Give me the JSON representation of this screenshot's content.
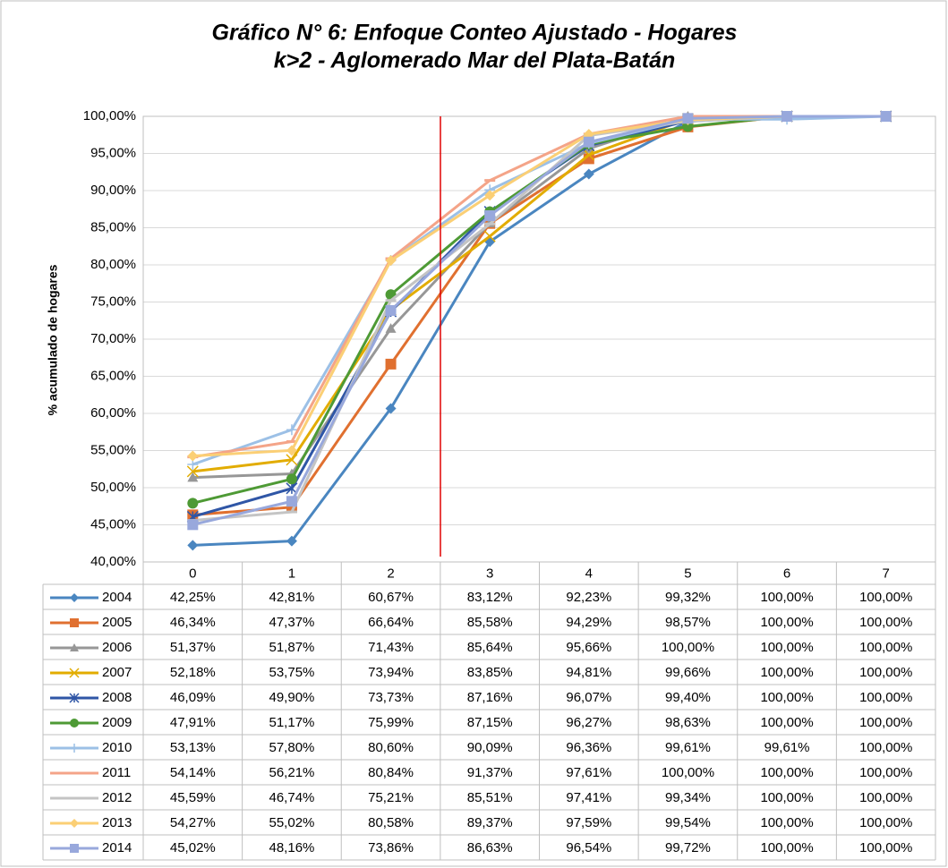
{
  "chart_data": {
    "type": "line",
    "title": "Gráfico N° 6: Enfoque Conteo Ajustado - Hogares",
    "subtitle": "k>2 - Aglomerado Mar del Plata-Batán",
    "y_label": "% acumulado de hogares",
    "categories": [
      "0",
      "1",
      "2",
      "3",
      "4",
      "5",
      "6",
      "7"
    ],
    "ylim": [
      40,
      100
    ],
    "yticks": [
      {
        "value": 40,
        "label": "40,00%"
      },
      {
        "value": 45,
        "label": "45,00%"
      },
      {
        "value": 50,
        "label": "50,00%"
      },
      {
        "value": 55,
        "label": "55,00%"
      },
      {
        "value": 60,
        "label": "60,00%"
      },
      {
        "value": 65,
        "label": "65,00%"
      },
      {
        "value": 70,
        "label": "70,00%"
      },
      {
        "value": 75,
        "label": "75,00%"
      },
      {
        "value": 80,
        "label": "80,00%"
      },
      {
        "value": 85,
        "label": "85,00%"
      },
      {
        "value": 90,
        "label": "90,00%"
      },
      {
        "value": 95,
        "label": "95,00%"
      },
      {
        "value": 100,
        "label": "100,00%"
      }
    ],
    "grid": true,
    "series": [
      {
        "name": "2004",
        "color": "#4a86c0",
        "marker": "diamond",
        "values": [
          42.25,
          42.81,
          60.67,
          83.12,
          92.23,
          99.32,
          100,
          100
        ],
        "value_labels": [
          "42,25%",
          "42,81%",
          "60,67%",
          "83,12%",
          "92,23%",
          "99,32%",
          "100,00%",
          "100,00%"
        ]
      },
      {
        "name": "2005",
        "color": "#e07030",
        "marker": "square",
        "values": [
          46.34,
          47.37,
          66.64,
          85.58,
          94.29,
          98.57,
          100,
          100
        ],
        "value_labels": [
          "46,34%",
          "47,37%",
          "66,64%",
          "85,58%",
          "94,29%",
          "98,57%",
          "100,00%",
          "100,00%"
        ]
      },
      {
        "name": "2006",
        "color": "#979797",
        "marker": "triangle",
        "values": [
          51.37,
          51.87,
          71.43,
          85.64,
          95.66,
          100,
          100,
          100
        ],
        "value_labels": [
          "51,37%",
          "51,87%",
          "71,43%",
          "85,64%",
          "95,66%",
          "100,00%",
          "100,00%",
          "100,00%"
        ]
      },
      {
        "name": "2007",
        "color": "#e2ac00",
        "marker": "x",
        "values": [
          52.18,
          53.75,
          73.94,
          83.85,
          94.81,
          99.66,
          100,
          100
        ],
        "value_labels": [
          "52,18%",
          "53,75%",
          "73,94%",
          "83,85%",
          "94,81%",
          "99,66%",
          "100,00%",
          "100,00%"
        ]
      },
      {
        "name": "2008",
        "color": "#2f56a6",
        "marker": "star",
        "values": [
          46.09,
          49.9,
          73.73,
          87.16,
          96.07,
          99.4,
          100,
          100
        ],
        "value_labels": [
          "46,09%",
          "49,90%",
          "73,73%",
          "87,16%",
          "96,07%",
          "99,40%",
          "100,00%",
          "100,00%"
        ]
      },
      {
        "name": "2009",
        "color": "#4e9a35",
        "marker": "circle",
        "values": [
          47.91,
          51.17,
          75.99,
          87.15,
          96.27,
          98.63,
          100,
          100
        ],
        "value_labels": [
          "47,91%",
          "51,17%",
          "75,99%",
          "87,15%",
          "96,27%",
          "98,63%",
          "100,00%",
          "100,00%"
        ]
      },
      {
        "name": "2010",
        "color": "#9cc0e6",
        "marker": "plus",
        "values": [
          53.13,
          57.8,
          80.6,
          90.09,
          96.36,
          99.61,
          99.61,
          100
        ],
        "value_labels": [
          "53,13%",
          "57,80%",
          "80,60%",
          "90,09%",
          "96,36%",
          "99,61%",
          "99,61%",
          "100,00%"
        ]
      },
      {
        "name": "2011",
        "color": "#f4a488",
        "marker": "dash",
        "values": [
          54.14,
          56.21,
          80.84,
          91.37,
          97.61,
          100,
          100,
          100
        ],
        "value_labels": [
          "54,14%",
          "56,21%",
          "80,84%",
          "91,37%",
          "97,61%",
          "100,00%",
          "100,00%",
          "100,00%"
        ]
      },
      {
        "name": "2012",
        "color": "#c4c4c4",
        "marker": "dash",
        "values": [
          45.59,
          46.74,
          75.21,
          85.51,
          97.41,
          99.34,
          100,
          100
        ],
        "value_labels": [
          "45,59%",
          "46,74%",
          "75,21%",
          "85,51%",
          "97,41%",
          "99,34%",
          "100,00%",
          "100,00%"
        ]
      },
      {
        "name": "2013",
        "color": "#fbcf75",
        "marker": "diamond",
        "values": [
          54.27,
          55.02,
          80.58,
          89.37,
          97.59,
          99.54,
          100,
          100
        ],
        "value_labels": [
          "54,27%",
          "55,02%",
          "80,58%",
          "89,37%",
          "97,59%",
          "99,54%",
          "100,00%",
          "100,00%"
        ]
      },
      {
        "name": "2014",
        "color": "#98a8dc",
        "marker": "square",
        "values": [
          45.02,
          48.16,
          73.86,
          86.63,
          96.54,
          99.72,
          100,
          100
        ],
        "value_labels": [
          "45,02%",
          "48,16%",
          "73,86%",
          "86,63%",
          "96,54%",
          "99,72%",
          "100,00%",
          "100,00%"
        ]
      }
    ]
  }
}
